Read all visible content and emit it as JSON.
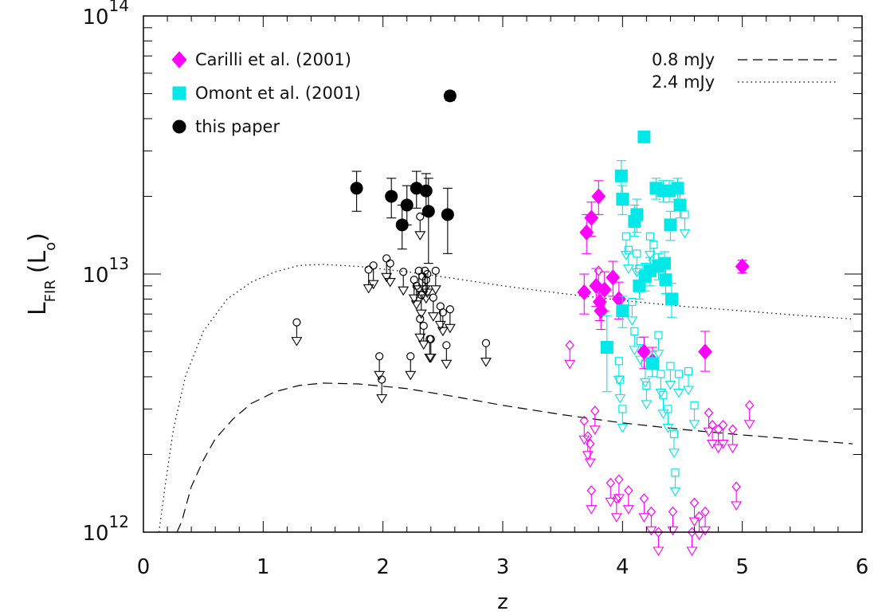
{
  "chart_data": {
    "type": "scatter",
    "title": "",
    "xlabel": "z",
    "ylabel": {
      "main": "L",
      "sub": "FIR",
      "unit_open": "(L",
      "unit_sub": "o",
      "unit_close": ")"
    },
    "xlim": [
      0,
      6
    ],
    "ylim": [
      1000000000000.0,
      100000000000000.0
    ],
    "yscale": "log",
    "x_ticks": [
      {
        "value": 0,
        "label": "0"
      },
      {
        "value": 1,
        "label": "1"
      },
      {
        "value": 2,
        "label": "2"
      },
      {
        "value": 3,
        "label": "3"
      },
      {
        "value": 4,
        "label": "4"
      },
      {
        "value": 5,
        "label": "5"
      },
      {
        "value": 6,
        "label": "6"
      }
    ],
    "y_ticks": [
      {
        "value": 1000000000000.0,
        "base": "10",
        "exp": "12"
      },
      {
        "value": 10000000000000.0,
        "base": "10",
        "exp": "13"
      },
      {
        "value": 100000000000000.0,
        "base": "10",
        "exp": "14"
      }
    ],
    "colors": {
      "carilli": "#ff00ff",
      "omont": "#00e8e8",
      "this_paper": "#000000",
      "axes": "#000000"
    },
    "legend": [
      {
        "label": "Carilli et al. (2001)",
        "marker": "diamond",
        "color": "#ff00ff"
      },
      {
        "label": "Omont et al. (2001)",
        "marker": "square",
        "color": "#00e8e8"
      },
      {
        "label": "this paper",
        "marker": "circle",
        "color": "#000000"
      }
    ],
    "line_legend": [
      {
        "label": "0.8 mJy",
        "style": "dashed"
      },
      {
        "label": "2.4 mJy",
        "style": "dotted"
      }
    ],
    "curves": [
      {
        "name": "0.8 mJy",
        "style": "dashed",
        "x": [
          0.28,
          0.32,
          0.4,
          0.5,
          0.6,
          0.75,
          0.9,
          1.1,
          1.3,
          1.5,
          1.8,
          2.2,
          2.6,
          3.0,
          3.5,
          4.0,
          4.5,
          5.0,
          5.5,
          5.92
        ],
        "y": [
          1000000000000.0,
          1100000000000.0,
          1500000000000.0,
          1900000000000.0,
          2300000000000.0,
          2750000000000.0,
          3150000000000.0,
          3500000000000.0,
          3700000000000.0,
          3780000000000.0,
          3750000000000.0,
          3600000000000.0,
          3350000000000.0,
          3100000000000.0,
          2850000000000.0,
          2650000000000.0,
          2500000000000.0,
          2380000000000.0,
          2280000000000.0,
          2200000000000.0
        ]
      },
      {
        "name": "2.4 mJy",
        "style": "dotted",
        "x": [
          0.13,
          0.18,
          0.25,
          0.35,
          0.5,
          0.7,
          0.9,
          1.1,
          1.3,
          1.5,
          1.8,
          2.2,
          2.6,
          3.0,
          3.5,
          4.0,
          4.5,
          5.0,
          5.5,
          5.92
        ],
        "y": [
          1000000000000.0,
          1500000000000.0,
          2500000000000.0,
          4000000000000.0,
          6000000000000.0,
          8000000000000.0,
          9300000000000.0,
          10200000000000.0,
          10800000000000.0,
          10900000000000.0,
          10700000000000.0,
          10200000000000.0,
          9600000000000.0,
          9000000000000.0,
          8400000000000.0,
          7900000000000.0,
          7500000000000.0,
          7200000000000.0,
          6900000000000.0,
          6700000000000.0
        ]
      }
    ],
    "series": [
      {
        "name": "this paper",
        "marker": "circle",
        "filled": true,
        "color": "#000000",
        "points": [
          {
            "x": 1.78,
            "y": 21500000000000.0,
            "lo": 17500000000000.0,
            "hi": 25000000000000.0
          },
          {
            "x": 2.07,
            "y": 20000000000000.0,
            "lo": 16500000000000.0,
            "hi": 23500000000000.0
          },
          {
            "x": 2.16,
            "y": 15500000000000.0,
            "lo": 12500000000000.0,
            "hi": 18500000000000.0
          },
          {
            "x": 2.2,
            "y": 18500000000000.0,
            "lo": 15500000000000.0,
            "hi": 22000000000000.0
          },
          {
            "x": 2.28,
            "y": 21500000000000.0,
            "lo": 18000000000000.0,
            "hi": 25000000000000.0
          },
          {
            "x": 2.36,
            "y": 21000000000000.0,
            "lo": 17000000000000.0,
            "hi": 24500000000000.0
          },
          {
            "x": 2.38,
            "y": 17500000000000.0,
            "lo": 11000000000000.0,
            "hi": 23500000000000.0
          },
          {
            "x": 2.54,
            "y": 17000000000000.0,
            "lo": 12000000000000.0,
            "hi": 21500000000000.0
          },
          {
            "x": 2.56,
            "y": 49000000000000.0,
            "lo": 47000000000000.0,
            "hi": 51000000000000.0
          }
        ]
      },
      {
        "name": "Carilli et al. (2001)",
        "marker": "diamond",
        "filled": true,
        "color": "#ff00ff",
        "points": [
          {
            "x": 3.68,
            "y": 8500000000000.0,
            "lo": 7000000000000.0,
            "hi": 10000000000000.0
          },
          {
            "x": 3.7,
            "y": 14500000000000.0,
            "lo": 12000000000000.0,
            "hi": 17000000000000.0
          },
          {
            "x": 3.74,
            "y": 16500000000000.0,
            "lo": 14000000000000.0,
            "hi": 19000000000000.0
          },
          {
            "x": 3.78,
            "y": 9000000000000.0,
            "lo": 7500000000000.0,
            "hi": 10500000000000.0
          },
          {
            "x": 3.8,
            "y": 20000000000000.0,
            "lo": 17000000000000.0,
            "hi": 23000000000000.0
          },
          {
            "x": 3.81,
            "y": 7800000000000.0,
            "lo": 6600000000000.0,
            "hi": 9000000000000.0
          },
          {
            "x": 3.82,
            "y": 7200000000000.0,
            "lo": 6100000000000.0,
            "hi": 8300000000000.0
          },
          {
            "x": 3.85,
            "y": 8700000000000.0,
            "lo": 7200000000000.0,
            "hi": 10200000000000.0
          },
          {
            "x": 3.92,
            "y": 9700000000000.0,
            "lo": 8200000000000.0,
            "hi": 11200000000000.0
          },
          {
            "x": 3.97,
            "y": 8000000000000.0,
            "lo": 6700000000000.0,
            "hi": 9300000000000.0
          },
          {
            "x": 4.18,
            "y": 5000000000000.0,
            "lo": 4300000000000.0,
            "hi": 5700000000000.0
          },
          {
            "x": 4.25,
            "y": 4600000000000.0,
            "lo": 4000000000000.0,
            "hi": 5200000000000.0
          },
          {
            "x": 4.69,
            "y": 5000000000000.0,
            "lo": 4200000000000.0,
            "hi": 6000000000000.0
          },
          {
            "x": 5.0,
            "y": 10700000000000.0,
            "lo": 10100000000000.0,
            "hi": 11300000000000.0
          }
        ]
      },
      {
        "name": "Omont et al. (2001)",
        "marker": "square",
        "filled": true,
        "color": "#00e8e8",
        "points": [
          {
            "x": 3.87,
            "y": 5200000000000.0,
            "lo": 3500000000000.0,
            "hi": 6900000000000.0
          },
          {
            "x": 3.99,
            "y": 24000000000000.0,
            "lo": 20500000000000.0,
            "hi": 27500000000000.0
          },
          {
            "x": 4.0,
            "y": 19500000000000.0,
            "lo": 17000000000000.0,
            "hi": 22000000000000.0
          },
          {
            "x": 4.0,
            "y": 7200000000000.0,
            "lo": 6200000000000.0,
            "hi": 8200000000000.0
          },
          {
            "x": 4.1,
            "y": 16000000000000.0,
            "lo": 14000000000000.0,
            "hi": 18500000000000.0
          },
          {
            "x": 4.12,
            "y": 17000000000000.0,
            "lo": 14500000000000.0,
            "hi": 19500000000000.0
          },
          {
            "x": 4.14,
            "y": 9000000000000.0,
            "lo": 8000000000000.0,
            "hi": 10000000000000.0
          },
          {
            "x": 4.18,
            "y": 34000000000000.0,
            "lo": 32500000000000.0,
            "hi": 35500000000000.0
          },
          {
            "x": 4.19,
            "y": 9800000000000.0,
            "lo": 8600000000000.0,
            "hi": 11000000000000.0
          },
          {
            "x": 4.23,
            "y": 10300000000000.0,
            "lo": 9000000000000.0,
            "hi": 11600000000000.0
          },
          {
            "x": 4.25,
            "y": 4500000000000.0,
            "lo": 4000000000000.0,
            "hi": 5000000000000.0
          },
          {
            "x": 4.28,
            "y": 21500000000000.0,
            "lo": 19500000000000.0,
            "hi": 23500000000000.0
          },
          {
            "x": 4.3,
            "y": 10700000000000.0,
            "lo": 9500000000000.0,
            "hi": 12000000000000.0
          },
          {
            "x": 4.34,
            "y": 21000000000000.0,
            "lo": 19000000000000.0,
            "hi": 23000000000000.0
          },
          {
            "x": 4.35,
            "y": 11000000000000.0,
            "lo": 9800000000000.0,
            "hi": 12200000000000.0
          },
          {
            "x": 4.36,
            "y": 9500000000000.0,
            "lo": 8400000000000.0,
            "hi": 10600000000000.0
          },
          {
            "x": 4.39,
            "y": 21000000000000.0,
            "lo": 19000000000000.0,
            "hi": 23000000000000.0
          },
          {
            "x": 4.4,
            "y": 15500000000000.0,
            "lo": 13500000000000.0,
            "hi": 17500000000000.0
          },
          {
            "x": 4.41,
            "y": 8000000000000.0,
            "lo": 6800000000000.0,
            "hi": 9200000000000.0
          },
          {
            "x": 4.46,
            "y": 21500000000000.0,
            "lo": 19500000000000.0,
            "hi": 23500000000000.0
          },
          {
            "x": 4.48,
            "y": 18500000000000.0,
            "lo": 16500000000000.0,
            "hi": 20500000000000.0
          }
        ]
      },
      {
        "name": "this paper (upper limits)",
        "marker": "circle",
        "filled": false,
        "upper_limit": true,
        "color": "#000000",
        "points": [
          {
            "x": 1.88,
            "y": 10400000000000.0
          },
          {
            "x": 1.92,
            "y": 10800000000000.0
          },
          {
            "x": 1.97,
            "y": 4800000000000.0
          },
          {
            "x": 1.99,
            "y": 3900000000000.0
          },
          {
            "x": 2.03,
            "y": 11500000000000.0
          },
          {
            "x": 2.06,
            "y": 11000000000000.0
          },
          {
            "x": 2.17,
            "y": 10200000000000.0
          },
          {
            "x": 2.23,
            "y": 4800000000000.0
          },
          {
            "x": 2.26,
            "y": 9500000000000.0
          },
          {
            "x": 2.28,
            "y": 9000000000000.0
          },
          {
            "x": 2.3,
            "y": 10300000000000.0
          },
          {
            "x": 2.31,
            "y": 16700000000000.0
          },
          {
            "x": 2.32,
            "y": 8300000000000.0
          },
          {
            "x": 2.33,
            "y": 9800000000000.0
          },
          {
            "x": 2.35,
            "y": 10300000000000.0
          },
          {
            "x": 2.36,
            "y": 9500000000000.0
          },
          {
            "x": 2.37,
            "y": 10000000000000.0
          },
          {
            "x": 2.39,
            "y": 5600000000000.0
          },
          {
            "x": 2.42,
            "y": 8100000000000.0
          },
          {
            "x": 2.44,
            "y": 10300000000000.0
          },
          {
            "x": 2.48,
            "y": 7500000000000.0
          },
          {
            "x": 2.5,
            "y": 7100000000000.0
          },
          {
            "x": 2.53,
            "y": 5300000000000.0
          },
          {
            "x": 2.56,
            "y": 7300000000000.0
          },
          {
            "x": 2.86,
            "y": 5400000000000.0
          },
          {
            "x": 1.28,
            "y": 6500000000000.0
          },
          {
            "x": 2.31,
            "y": 6700000000000.0
          },
          {
            "x": 2.34,
            "y": 6300000000000.0
          },
          {
            "x": 2.4,
            "y": 5600000000000.0
          }
        ]
      },
      {
        "name": "Carilli et al. (2001) (upper limits)",
        "marker": "diamond",
        "filled": false,
        "upper_limit": true,
        "color": "#ff00ff",
        "points": [
          {
            "x": 3.56,
            "y": 5300000000000.0
          },
          {
            "x": 3.68,
            "y": 2700000000000.0
          },
          {
            "x": 3.71,
            "y": 2350000000000.0
          },
          {
            "x": 3.73,
            "y": 2200000000000.0
          },
          {
            "x": 3.74,
            "y": 1450000000000.0
          },
          {
            "x": 3.77,
            "y": 2950000000000.0
          },
          {
            "x": 3.8,
            "y": 10300000000000.0
          },
          {
            "x": 3.9,
            "y": 1550000000000.0
          },
          {
            "x": 3.95,
            "y": 1350000000000.0
          },
          {
            "x": 3.97,
            "y": 1600000000000.0
          },
          {
            "x": 4.05,
            "y": 1450000000000.0
          },
          {
            "x": 4.18,
            "y": 1350000000000.0
          },
          {
            "x": 4.24,
            "y": 1200000000000.0
          },
          {
            "x": 4.3,
            "y": 1000000000000.0
          },
          {
            "x": 4.42,
            "y": 1200000000000.0
          },
          {
            "x": 4.58,
            "y": 1000000000000.0
          },
          {
            "x": 4.6,
            "y": 1300000000000.0
          },
          {
            "x": 4.64,
            "y": 1150000000000.0
          },
          {
            "x": 4.69,
            "y": 1200000000000.0
          },
          {
            "x": 4.72,
            "y": 2900000000000.0
          },
          {
            "x": 4.75,
            "y": 2600000000000.0
          },
          {
            "x": 4.8,
            "y": 2500000000000.0
          },
          {
            "x": 4.84,
            "y": 2600000000000.0
          },
          {
            "x": 4.92,
            "y": 2500000000000.0
          },
          {
            "x": 4.95,
            "y": 1500000000000.0
          },
          {
            "x": 5.06,
            "y": 3100000000000.0
          }
        ]
      },
      {
        "name": "Omont et al. (2001) (upper limits)",
        "marker": "square",
        "filled": false,
        "upper_limit": true,
        "color": "#00e8e8",
        "points": [
          {
            "x": 3.97,
            "y": 4600000000000.0
          },
          {
            "x": 3.98,
            "y": 3900000000000.0
          },
          {
            "x": 4.0,
            "y": 3000000000000.0
          },
          {
            "x": 4.03,
            "y": 14000000000000.0
          },
          {
            "x": 4.05,
            "y": 12400000000000.0
          },
          {
            "x": 4.08,
            "y": 7800000000000.0
          },
          {
            "x": 4.1,
            "y": 6000000000000.0
          },
          {
            "x": 4.12,
            "y": 12000000000000.0
          },
          {
            "x": 4.14,
            "y": 10500000000000.0
          },
          {
            "x": 4.15,
            "y": 5500000000000.0
          },
          {
            "x": 4.19,
            "y": 4500000000000.0
          },
          {
            "x": 4.2,
            "y": 3700000000000.0
          },
          {
            "x": 4.23,
            "y": 14000000000000.0
          },
          {
            "x": 4.26,
            "y": 13000000000000.0
          },
          {
            "x": 4.3,
            "y": 5800000000000.0
          },
          {
            "x": 4.32,
            "y": 4100000000000.0
          },
          {
            "x": 4.34,
            "y": 3400000000000.0
          },
          {
            "x": 4.38,
            "y": 3000000000000.0
          },
          {
            "x": 4.4,
            "y": 4400000000000.0
          },
          {
            "x": 4.43,
            "y": 2400000000000.0
          },
          {
            "x": 4.44,
            "y": 1700000000000.0
          },
          {
            "x": 4.47,
            "y": 4100000000000.0
          },
          {
            "x": 4.52,
            "y": 17000000000000.0
          },
          {
            "x": 4.55,
            "y": 4200000000000.0
          },
          {
            "x": 4.6,
            "y": 3100000000000.0
          }
        ]
      }
    ]
  }
}
